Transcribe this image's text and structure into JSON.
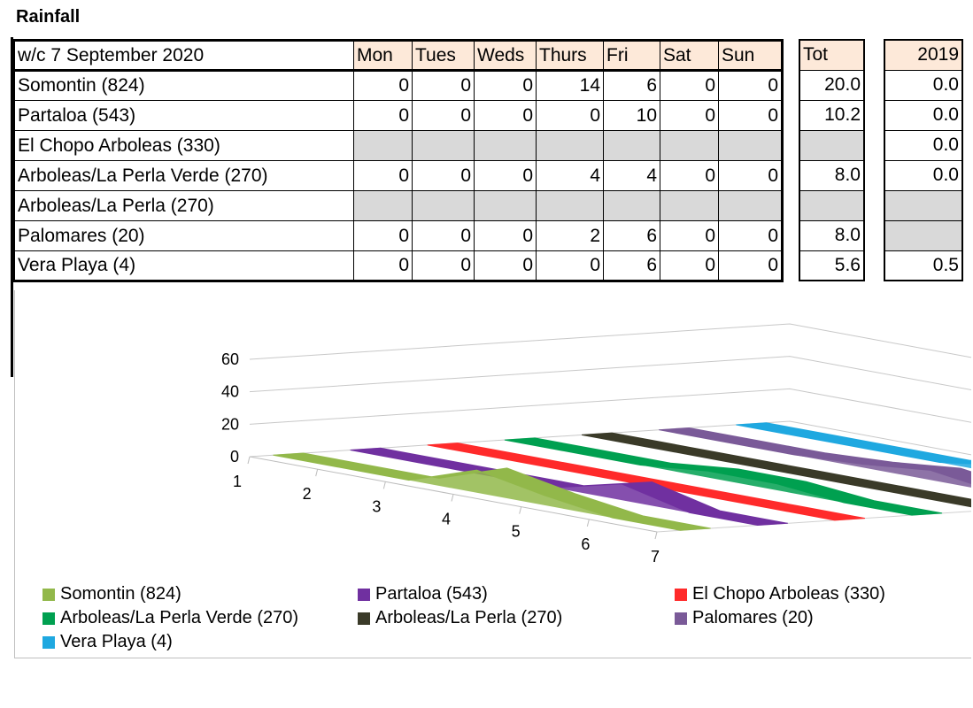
{
  "title": "Rainfall",
  "table": {
    "week_label": "w/c 7 September  2020",
    "days": [
      "Mon",
      "Tues",
      "Weds",
      "Thurs",
      "Fri",
      "Sat",
      "Sun"
    ],
    "tot_label": "Tot",
    "year_label": "2019",
    "rows": [
      {
        "name": "Somontin (824)",
        "values": [
          "0",
          "0",
          "0",
          "14",
          "6",
          "0",
          "0"
        ],
        "tot": "20.0",
        "y2019": "0.0"
      },
      {
        "name": "Partaloa (543)",
        "values": [
          "0",
          "0",
          "0",
          "0",
          "10",
          "0",
          "0"
        ],
        "tot": "10.2",
        "y2019": "0.0"
      },
      {
        "name": "El Chopo Arboleas (330)",
        "values": [
          "",
          "",
          "",
          "",
          "",
          "",
          ""
        ],
        "tot": "",
        "y2019": "0.0"
      },
      {
        "name": "Arboleas/La Perla Verde (270)",
        "values": [
          "0",
          "0",
          "0",
          "4",
          "4",
          "0",
          "0"
        ],
        "tot": "8.0",
        "y2019": "0.0"
      },
      {
        "name": "Arboleas/La Perla (270)",
        "values": [
          "",
          "",
          "",
          "",
          "",
          "",
          ""
        ],
        "tot": "",
        "y2019": ""
      },
      {
        "name": "Palomares (20)",
        "values": [
          "0",
          "0",
          "0",
          "2",
          "6",
          "0",
          "0"
        ],
        "tot": "8.0",
        "y2019": ""
      },
      {
        "name": "Vera Playa (4)",
        "values": [
          "0",
          "0",
          "0",
          "0",
          "6",
          "0",
          "0"
        ],
        "tot": "5.6",
        "y2019": "0.5"
      }
    ]
  },
  "chart_data": {
    "type": "area",
    "x": [
      1,
      2,
      3,
      4,
      5,
      6,
      7
    ],
    "ylim": [
      0,
      60
    ],
    "yticks": [
      0,
      20,
      40,
      60
    ],
    "series": [
      {
        "name": "Somontin (824)",
        "color": "#92b84a",
        "values": [
          0,
          0,
          0,
          14,
          6,
          0,
          0
        ]
      },
      {
        "name": "Partaloa (543)",
        "color": "#7030a0",
        "values": [
          0,
          0,
          0,
          0,
          10,
          0,
          0
        ]
      },
      {
        "name": "El Chopo Arboleas (330)",
        "color": "#ff2a2a",
        "values": [
          0,
          0,
          0,
          0,
          0,
          0,
          0
        ]
      },
      {
        "name": "Arboleas/La Perla Verde (270)",
        "color": "#00a050",
        "values": [
          0,
          0,
          0,
          4,
          4,
          0,
          0
        ]
      },
      {
        "name": "Arboleas/La Perla (270)",
        "color": "#3a3a28",
        "values": [
          0,
          0,
          0,
          0,
          0,
          0,
          0
        ]
      },
      {
        "name": "Palomares (20)",
        "color": "#7a5a98",
        "values": [
          0,
          0,
          0,
          2,
          6,
          0,
          0
        ]
      },
      {
        "name": "Vera Playa (4)",
        "color": "#1fa8e0",
        "values": [
          0,
          0,
          0,
          0,
          6,
          0,
          0
        ]
      }
    ],
    "legend_position": "bottom"
  }
}
